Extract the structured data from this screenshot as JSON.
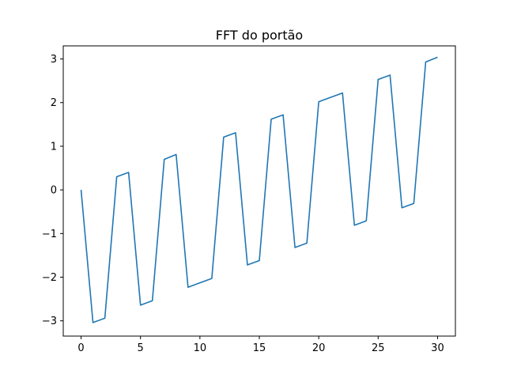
{
  "chart_data": {
    "type": "line",
    "title": "FFT do portão",
    "xlabel": "",
    "ylabel": "",
    "xlim": [
      -1.5,
      31.5
    ],
    "ylim": [
      -3.35,
      3.3
    ],
    "xticks": [
      0,
      5,
      10,
      15,
      20,
      25,
      30
    ],
    "yticks": [
      -3,
      -2,
      -1,
      0,
      1,
      2,
      3
    ],
    "ytick_labels": [
      "−3",
      "−2",
      "−1",
      "0",
      "1",
      "2",
      "3"
    ],
    "grid": false,
    "series": [
      {
        "color": "#1f77b4",
        "x": [
          0,
          1,
          2,
          3,
          4,
          5,
          6,
          7,
          8,
          9,
          10,
          11,
          12,
          13,
          14,
          15,
          16,
          17,
          18,
          19,
          20,
          21,
          22,
          23,
          24,
          25,
          26,
          27,
          28,
          29,
          30
        ],
        "values": [
          0.0,
          -3.04,
          -2.94,
          0.3,
          0.4,
          -2.64,
          -2.54,
          0.7,
          0.81,
          -2.23,
          -2.13,
          -2.03,
          1.21,
          1.31,
          -1.72,
          -1.62,
          1.62,
          1.72,
          -1.32,
          -1.22,
          2.02,
          2.12,
          2.22,
          -0.81,
          -0.71,
          2.53,
          2.63,
          -0.41,
          -0.31,
          2.93,
          3.04
        ]
      }
    ]
  }
}
